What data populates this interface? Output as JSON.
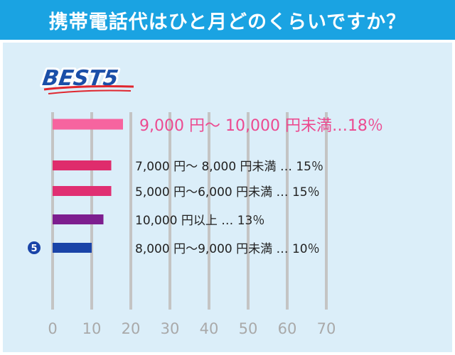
{
  "header": {
    "title": "携帯電話代はひと月どのくらいですか？"
  },
  "colors": {
    "header_bg": "#1aa3e2",
    "panel_bg": "#dbeef9",
    "axis": "#c4c4c4",
    "rank1_text": "#ec4a90",
    "label_text": "#222222"
  },
  "badge": {
    "label": "BEST5"
  },
  "chart_data": {
    "type": "bar",
    "orientation": "horizontal",
    "title": "携帯電話代はひと月どのくらいですか？",
    "categories": [
      "9,000 円～ 10,000 円未満",
      "7,000 円～ 8,000 円未満",
      "5,000 円～6,000 円未満",
      "10,000 円以上",
      "8,000 円～9,000 円未満"
    ],
    "values": [
      18,
      15,
      15,
      13,
      10
    ],
    "value_labels": [
      "9,000 円～ 10,000 円未満…18％",
      "7,000 円～ 8,000 円未満 … 15％",
      "5,000 円～6,000 円未満 … 15％",
      "10,000 円以上 … 13％",
      "8,000 円～9,000 円未満 … 10％"
    ],
    "bar_colors": [
      "#f6649f",
      "#df2c6c",
      "#e02f72",
      "#7d1e8f",
      "#1a44a8"
    ],
    "xlim": [
      0,
      70
    ],
    "xticks": [
      "0",
      "10",
      "20",
      "30",
      "40",
      "50",
      "60",
      "70"
    ],
    "grid": true,
    "rank_marker": {
      "label": "5"
    }
  }
}
